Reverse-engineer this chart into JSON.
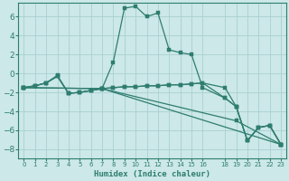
{
  "xlabel": "Humidex (Indice chaleur)",
  "bg_color": "#cce8e8",
  "grid_color": "#aacfcf",
  "line_color": "#2e7d6e",
  "xlim": [
    -0.5,
    23.5
  ],
  "ylim": [
    -9.0,
    7.5
  ],
  "yticks": [
    -8,
    -6,
    -4,
    -2,
    0,
    2,
    4,
    6
  ],
  "xticks": [
    0,
    1,
    2,
    3,
    4,
    5,
    6,
    7,
    8,
    9,
    10,
    11,
    12,
    13,
    14,
    15,
    16,
    18,
    19,
    20,
    21,
    22,
    23
  ],
  "line1_x": [
    0,
    1,
    2,
    3,
    4,
    5,
    6,
    7,
    8,
    9,
    10,
    11,
    12,
    13,
    14,
    15,
    16,
    18,
    19,
    20,
    21,
    22,
    23
  ],
  "line1_y": [
    -1.5,
    -1.3,
    -1.0,
    -0.2,
    -2.1,
    -2.0,
    -1.8,
    -1.6,
    1.2,
    6.9,
    7.1,
    6.0,
    6.4,
    2.5,
    2.2,
    2.0,
    -1.5,
    -2.6,
    -3.5,
    -7.1,
    -5.7,
    -5.5,
    -7.5
  ],
  "line2_x": [
    0,
    1,
    2,
    3,
    4,
    5,
    6,
    7,
    8,
    9,
    10,
    11,
    12,
    13,
    14,
    15,
    16,
    18,
    19,
    20,
    21,
    22,
    23
  ],
  "line2_y": [
    -1.5,
    -1.3,
    -1.0,
    -0.3,
    -2.1,
    -2.0,
    -1.8,
    -1.6,
    -1.5,
    -1.4,
    -1.4,
    -1.3,
    -1.3,
    -1.2,
    -1.2,
    -1.1,
    -1.0,
    -2.6,
    -3.5,
    -7.1,
    -5.7,
    -5.5,
    -7.5
  ],
  "line3_x": [
    0,
    1,
    2,
    3,
    4,
    5,
    6,
    7,
    8,
    9,
    10,
    11,
    12,
    13,
    14,
    15,
    16,
    18,
    19,
    20,
    21,
    22,
    23
  ],
  "line3_y": [
    -1.5,
    -1.3,
    -1.0,
    -0.3,
    -2.1,
    -2.0,
    -1.8,
    -1.6,
    -1.5,
    -1.4,
    -1.4,
    -1.3,
    -1.3,
    -1.2,
    -1.2,
    -1.1,
    -1.0,
    -1.5,
    -3.5,
    -7.1,
    -5.7,
    -5.5,
    -7.5
  ],
  "line4_x": [
    0,
    7,
    23
  ],
  "line4_y": [
    -1.5,
    -1.6,
    -7.5
  ],
  "line5_x": [
    0,
    7,
    19,
    23
  ],
  "line5_y": [
    -1.5,
    -1.6,
    -5.0,
    -7.5
  ]
}
